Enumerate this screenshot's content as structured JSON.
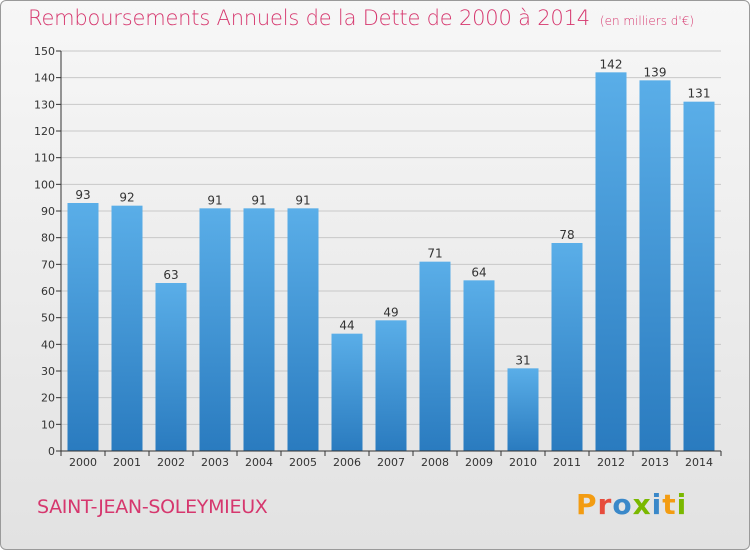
{
  "header": {
    "title": "Remboursements Annuels de la Dette de 2000 à 2014",
    "subtitle": "(en milliers d'€)"
  },
  "footer": {
    "place": "SAINT-JEAN-SOLEYMIEUX",
    "brand": "Proxiti",
    "brand_colors": [
      "#f39c12",
      "#e74c3c",
      "#3a88c9",
      "#7ab800",
      "#3a88c9",
      "#f39c12",
      "#7ab800"
    ]
  },
  "colors": {
    "bar_light": "#5aaee8",
    "bar_dark": "#2a7bbf",
    "axis": "#333333",
    "grid": "#c8c8c8"
  },
  "chart_data": {
    "type": "bar",
    "title": "Remboursements Annuels de la Dette de 2000 à 2014",
    "xlabel": "",
    "ylabel": "",
    "unit": "milliers d'€",
    "ylim": [
      0,
      150
    ],
    "ytick_step": 10,
    "grid": true,
    "categories": [
      "2000",
      "2001",
      "2002",
      "2003",
      "2004",
      "2005",
      "2006",
      "2007",
      "2008",
      "2009",
      "2010",
      "2011",
      "2012",
      "2013",
      "2014"
    ],
    "values": [
      93,
      92,
      63,
      91,
      91,
      91,
      44,
      49,
      71,
      64,
      31,
      78,
      142,
      139,
      131
    ]
  }
}
